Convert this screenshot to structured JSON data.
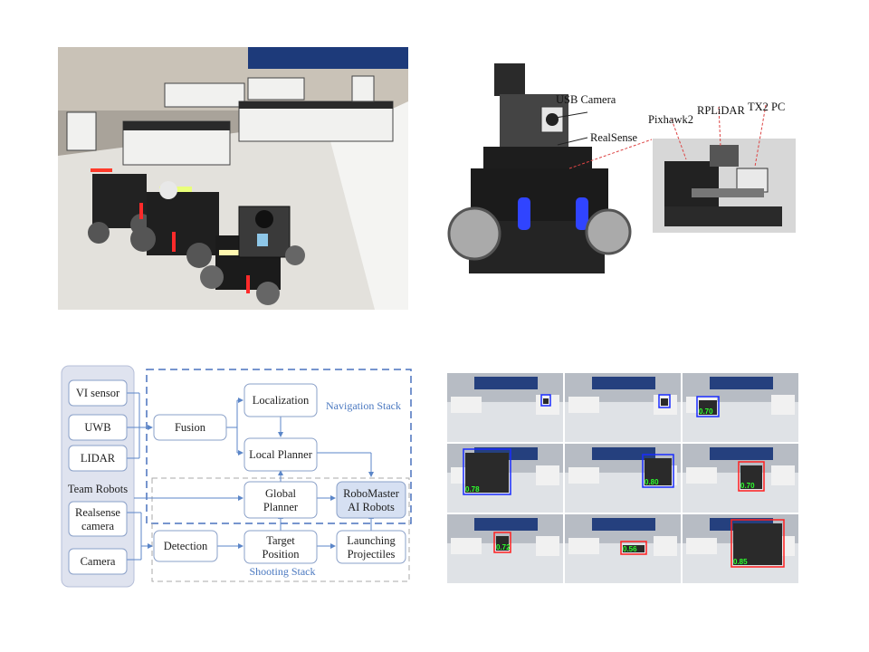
{
  "diagram": {
    "inputs": [
      {
        "id": "vi",
        "label": "VI sensor"
      },
      {
        "id": "uwb",
        "label": "UWB"
      },
      {
        "id": "lidar",
        "label": "LIDAR"
      },
      {
        "id": "realsense",
        "label_lines": [
          "Realsense",
          "camera"
        ]
      },
      {
        "id": "camera",
        "label": "Camera"
      }
    ],
    "team_robots_label": "Team Robots",
    "stack_labels": {
      "navigation": "Navigation Stack",
      "shooting": "Shooting Stack"
    },
    "nodes": {
      "fusion": "Fusion",
      "localization": "Localization",
      "local_planner": "Local Planner",
      "global_planner_lines": [
        "Global",
        "Planner"
      ],
      "robomaster_lines": [
        "RoboMaster",
        "AI Robots"
      ],
      "detection": "Detection",
      "target_position_lines": [
        "Target",
        "Position"
      ],
      "launching_lines": [
        "Launching",
        "Projectiles"
      ]
    }
  },
  "robot_annotations": [
    "USB Camera",
    "RealSense",
    "Pixhawk2",
    "RPLiDAR",
    "TX2 PC"
  ],
  "detection_grid": {
    "rows": 3,
    "cols": 3,
    "cells": [
      {
        "boxes": [
          {
            "color": "blue",
            "score": ""
          }
        ]
      },
      {
        "boxes": [
          {
            "color": "blue",
            "score": ""
          }
        ]
      },
      {
        "boxes": [
          {
            "color": "blue",
            "score": "0.70"
          }
        ]
      },
      {
        "boxes": [
          {
            "color": "blue",
            "score": "0.78"
          }
        ]
      },
      {
        "boxes": [
          {
            "color": "blue",
            "score": "0.80"
          }
        ]
      },
      {
        "boxes": [
          {
            "color": "red",
            "score": "0.70"
          }
        ]
      },
      {
        "boxes": [
          {
            "color": "red",
            "score": "0.72"
          }
        ]
      },
      {
        "boxes": [
          {
            "color": "red",
            "score": "0.56"
          }
        ]
      },
      {
        "boxes": [
          {
            "color": "red",
            "score": "0.85"
          }
        ]
      }
    ],
    "colors": {
      "blue": "#1a2cff",
      "red": "#ff2020",
      "label": "#2dff2d"
    }
  },
  "colors": {
    "node_fill": "#ffffff",
    "node_stroke": "#8aa0c8",
    "left_panel": "#dfe3ef",
    "robomaster_fill": "#d6e0f2",
    "arrow": "#5b86c8",
    "nav_dash": "#4a72bd",
    "shoot_dash": "#a9a9a9"
  }
}
